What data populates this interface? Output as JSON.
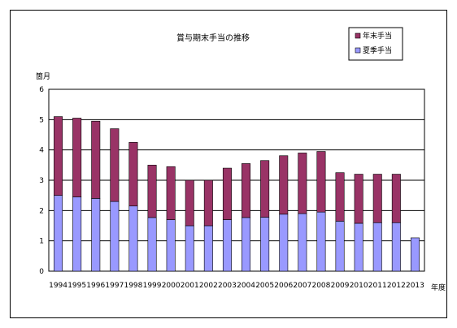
{
  "chart_data": {
    "type": "bar",
    "stacked": true,
    "title": "賞与期末手当の推移",
    "ylabel": "箇月",
    "xlabel": "年度",
    "ylim": [
      0,
      6
    ],
    "yticks": [
      0,
      1,
      2,
      3,
      4,
      5,
      6
    ],
    "grid": true,
    "legend_placement": "top-right",
    "categories": [
      "1994",
      "1995",
      "1996",
      "1997",
      "1998",
      "1999",
      "2000",
      "2001",
      "2002",
      "2003",
      "2004",
      "2005",
      "2006",
      "2007",
      "2008",
      "2009",
      "2010",
      "2011",
      "2012",
      "2013"
    ],
    "series": [
      {
        "name": "夏季手当",
        "color": "#9999ff",
        "values": [
          2.5,
          2.45,
          2.4,
          2.3,
          2.15,
          1.77,
          1.7,
          1.5,
          1.5,
          1.7,
          1.77,
          1.78,
          1.88,
          1.9,
          1.95,
          1.65,
          1.58,
          1.6,
          1.6,
          1.1
        ]
      },
      {
        "name": "年末手当",
        "color": "#993366",
        "values": [
          2.6,
          2.6,
          2.55,
          2.4,
          2.1,
          1.73,
          1.75,
          1.5,
          1.5,
          1.7,
          1.78,
          1.87,
          1.93,
          2.0,
          2.0,
          1.6,
          1.62,
          1.6,
          1.6,
          0
        ]
      }
    ]
  }
}
